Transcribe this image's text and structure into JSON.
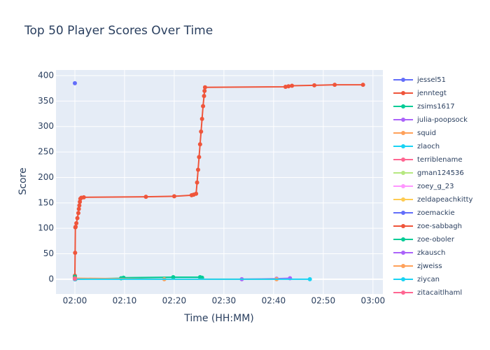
{
  "chart_data": {
    "type": "line",
    "title": "Top 50 Player Scores Over Time",
    "x_label": "Time (HH:MM)",
    "y_label": "Score",
    "xlim": [
      -3.8,
      62
    ],
    "ylim": [
      -29,
      411
    ],
    "xticks": [
      {
        "value": 0,
        "label": "02:00"
      },
      {
        "value": 10,
        "label": "02:10"
      },
      {
        "value": 20,
        "label": "02:20"
      },
      {
        "value": 30,
        "label": "02:30"
      },
      {
        "value": 40,
        "label": "02:40"
      },
      {
        "value": 50,
        "label": "02:50"
      },
      {
        "value": 60,
        "label": "03:00"
      }
    ],
    "yticks": [
      0,
      50,
      100,
      150,
      200,
      250,
      300,
      350,
      400
    ],
    "grid": true,
    "legend": "right",
    "series": [
      {
        "name": "jessel51",
        "color": "#636efa",
        "x": [
          0
        ],
        "values": [
          385
        ]
      },
      {
        "name": "jenntegt",
        "color": "#EF553B",
        "x": [
          0,
          0.05,
          0.1,
          0.15,
          0.3,
          0.5,
          0.7,
          0.8,
          0.9,
          1.0,
          1.1,
          1.3,
          1.8,
          14.3,
          20,
          23.5,
          23.9,
          24.4,
          24.6,
          24.8,
          25.0,
          25.2,
          25.4,
          25.6,
          25.8,
          26.0,
          26.1,
          26.2,
          42.4,
          43,
          43.7,
          48.2,
          52.3,
          58
        ],
        "values": [
          7,
          52,
          102,
          103,
          110,
          120,
          130,
          138,
          145,
          152,
          158,
          160,
          161,
          162,
          163,
          165,
          166,
          168,
          190,
          215,
          240,
          265,
          290,
          315,
          340,
          360,
          370,
          377,
          378,
          379,
          380,
          381,
          382,
          382
        ]
      },
      {
        "name": "zsims1617",
        "color": "#00cc96",
        "x": [
          0,
          0.1,
          9.3,
          9.8,
          19.8,
          25.2,
          25.6
        ],
        "values": [
          5,
          0,
          2,
          3,
          4,
          4,
          3
        ]
      },
      {
        "name": "julia-poopsock",
        "color": "#ab63fa",
        "x": [
          33.6,
          40.6,
          43.3
        ],
        "values": [
          0,
          1,
          2
        ]
      },
      {
        "name": "squid",
        "color": "#FFA15A",
        "x": [
          0,
          18,
          40.6
        ],
        "values": [
          2,
          0,
          0
        ]
      },
      {
        "name": "zlaoch",
        "color": "#19d3f3",
        "x": [
          0,
          47.3
        ],
        "values": [
          0,
          0
        ]
      },
      {
        "name": "terriblename",
        "color": "#FF6692",
        "x": [
          0
        ],
        "values": [
          1
        ]
      },
      {
        "name": "gman124536",
        "color": "#B6E880",
        "x": [
          0
        ],
        "values": [
          2
        ]
      },
      {
        "name": "zoey_g_23",
        "color": "#FF97FF",
        "x": [
          0
        ],
        "values": [
          1
        ]
      },
      {
        "name": "zeldapeachkitty",
        "color": "#FECB52",
        "x": [
          0
        ],
        "values": [
          0
        ]
      },
      {
        "name": "zoemackie",
        "color": "#636efa",
        "x": [
          0
        ],
        "values": [
          1
        ]
      },
      {
        "name": "zoe-sabbagh",
        "color": "#EF553B",
        "x": [
          0
        ],
        "values": [
          2
        ]
      },
      {
        "name": "zoe-oboler",
        "color": "#00cc96",
        "x": [
          0
        ],
        "values": [
          1
        ]
      },
      {
        "name": "zkausch",
        "color": "#ab63fa",
        "x": [
          0
        ],
        "values": [
          0
        ]
      },
      {
        "name": "zjweiss",
        "color": "#FFA15A",
        "x": [
          0
        ],
        "values": [
          1
        ]
      },
      {
        "name": "ziycan",
        "color": "#19d3f3",
        "x": [
          0
        ],
        "values": [
          0
        ]
      },
      {
        "name": "zitacaitlhaml",
        "color": "#FF6692",
        "x": [
          0
        ],
        "values": [
          1
        ]
      }
    ]
  }
}
